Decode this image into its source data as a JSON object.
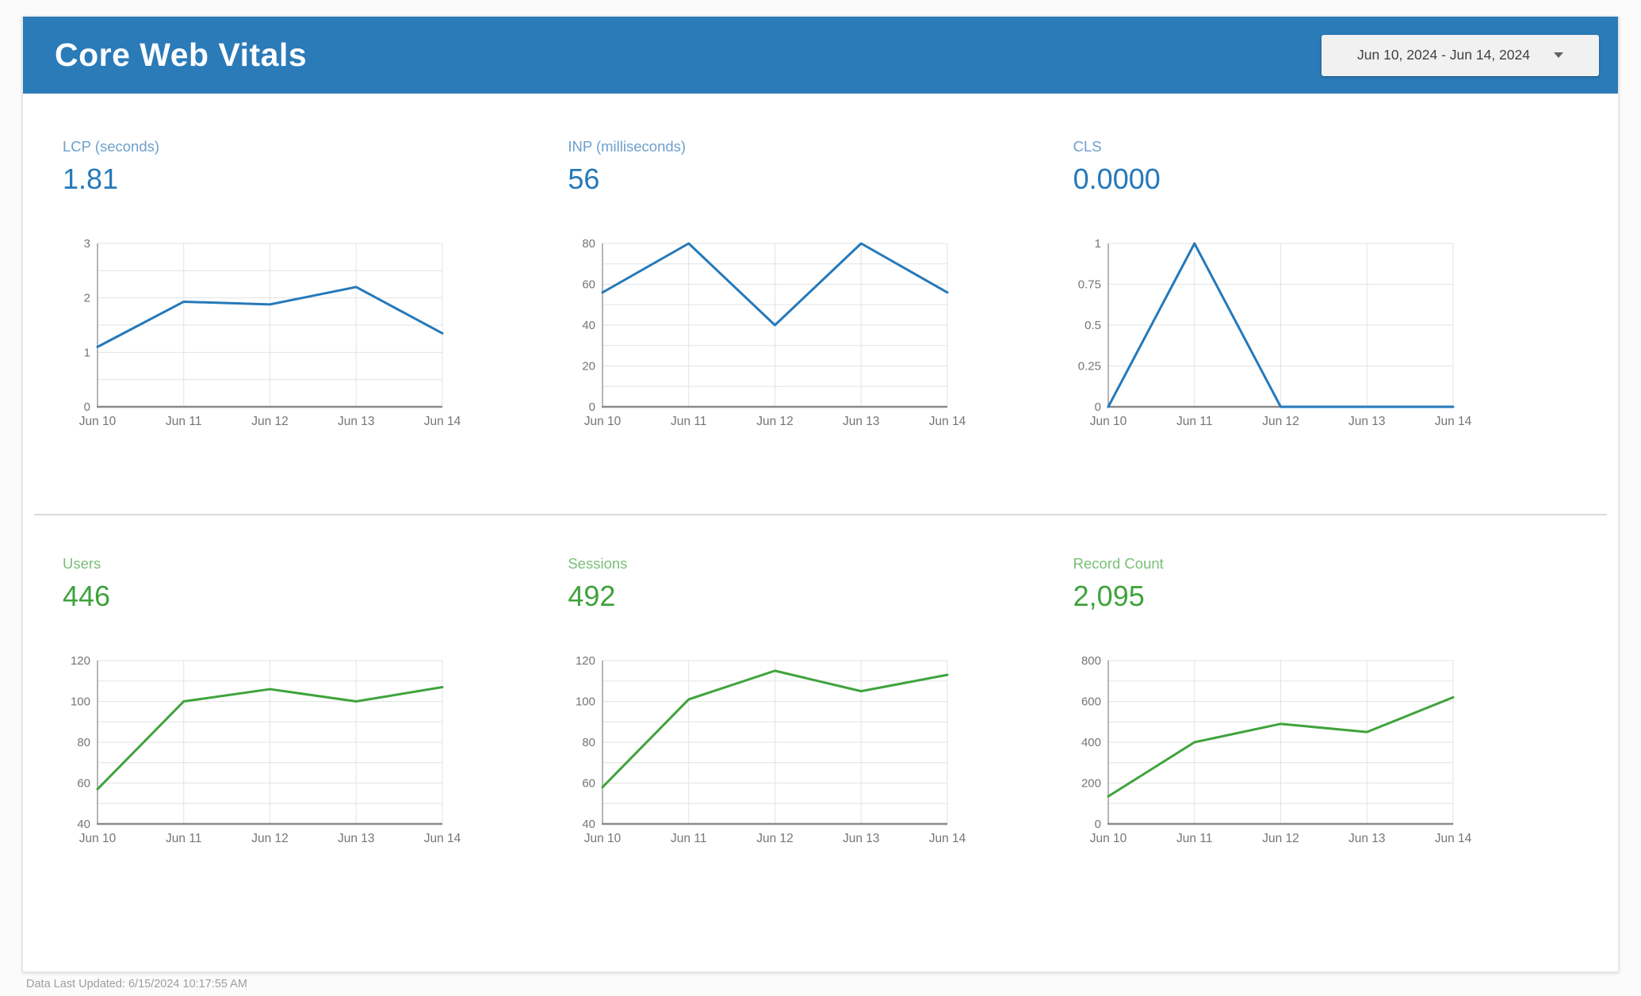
{
  "header": {
    "title": "Core Web Vitals",
    "date_range": "Jun 10, 2024 - Jun 14, 2024"
  },
  "footer": {
    "last_updated": "Data Last Updated: 6/15/2024 10:17:55 AM"
  },
  "colors": {
    "header_bg": "#2b7bb9",
    "blue_line": "#2579ba",
    "blue_label": "#6da0cc",
    "green_line": "#3fa33c",
    "green_label": "#7abf77",
    "grid": "#e3e3e3",
    "axis": "#9e9e9e",
    "axis_text": "#757575"
  },
  "chart_data": [
    {
      "type": "line",
      "title": "LCP (seconds)",
      "value": "1.81",
      "categories": [
        "Jun 10",
        "Jun 11",
        "Jun 12",
        "Jun 13",
        "Jun 14"
      ],
      "values": [
        1.1,
        1.93,
        1.88,
        2.2,
        1.35
      ],
      "ylim": [
        0,
        3
      ],
      "yticks": [
        "0",
        "1",
        "2",
        "3"
      ],
      "grid_step": 0.5,
      "grid": true,
      "legend": "none",
      "color": "#2579ba",
      "label_color": "#6da0cc",
      "value_color": "#2579ba"
    },
    {
      "type": "line",
      "title": "INP (milliseconds)",
      "value": "56",
      "categories": [
        "Jun 10",
        "Jun 11",
        "Jun 12",
        "Jun 13",
        "Jun 14"
      ],
      "values": [
        56,
        80,
        40,
        80,
        56
      ],
      "ylim": [
        0,
        80
      ],
      "yticks": [
        "0",
        "20",
        "40",
        "60",
        "80"
      ],
      "grid_step": 10,
      "grid": true,
      "legend": "none",
      "color": "#2579ba",
      "label_color": "#6da0cc",
      "value_color": "#2579ba"
    },
    {
      "type": "line",
      "title": "CLS",
      "value": "0.0000",
      "categories": [
        "Jun 10",
        "Jun 11",
        "Jun 12",
        "Jun 13",
        "Jun 14"
      ],
      "values": [
        0,
        1,
        0,
        0,
        0
      ],
      "ylim": [
        0,
        1
      ],
      "yticks": [
        "0",
        "0.25",
        "0.5",
        "0.75",
        "1"
      ],
      "grid_step": 0.25,
      "grid": true,
      "legend": "none",
      "color": "#2579ba",
      "label_color": "#6da0cc",
      "value_color": "#2579ba"
    },
    {
      "type": "line",
      "title": "Users",
      "value": "446",
      "categories": [
        "Jun 10",
        "Jun 11",
        "Jun 12",
        "Jun 13",
        "Jun 14"
      ],
      "values": [
        57,
        100,
        106,
        100,
        107
      ],
      "ylim": [
        40,
        120
      ],
      "yticks": [
        "40",
        "60",
        "80",
        "100",
        "120"
      ],
      "grid_step": 10,
      "grid": true,
      "legend": "none",
      "color": "#3fa33c",
      "label_color": "#7abf77",
      "value_color": "#3fa33c"
    },
    {
      "type": "line",
      "title": "Sessions",
      "value": "492",
      "categories": [
        "Jun 10",
        "Jun 11",
        "Jun 12",
        "Jun 13",
        "Jun 14"
      ],
      "values": [
        58,
        101,
        115,
        105,
        113
      ],
      "ylim": [
        40,
        120
      ],
      "yticks": [
        "40",
        "60",
        "80",
        "100",
        "120"
      ],
      "grid_step": 10,
      "grid": true,
      "legend": "none",
      "color": "#3fa33c",
      "label_color": "#7abf77",
      "value_color": "#3fa33c"
    },
    {
      "type": "line",
      "title": "Record Count",
      "value": "2,095",
      "categories": [
        "Jun 10",
        "Jun 11",
        "Jun 12",
        "Jun 13",
        "Jun 14"
      ],
      "values": [
        135,
        400,
        490,
        450,
        620
      ],
      "ylim": [
        0,
        800
      ],
      "yticks": [
        "0",
        "200",
        "400",
        "600",
        "800"
      ],
      "grid_step": 100,
      "grid": true,
      "legend": "none",
      "color": "#3fa33c",
      "label_color": "#7abf77",
      "value_color": "#3fa33c"
    }
  ]
}
